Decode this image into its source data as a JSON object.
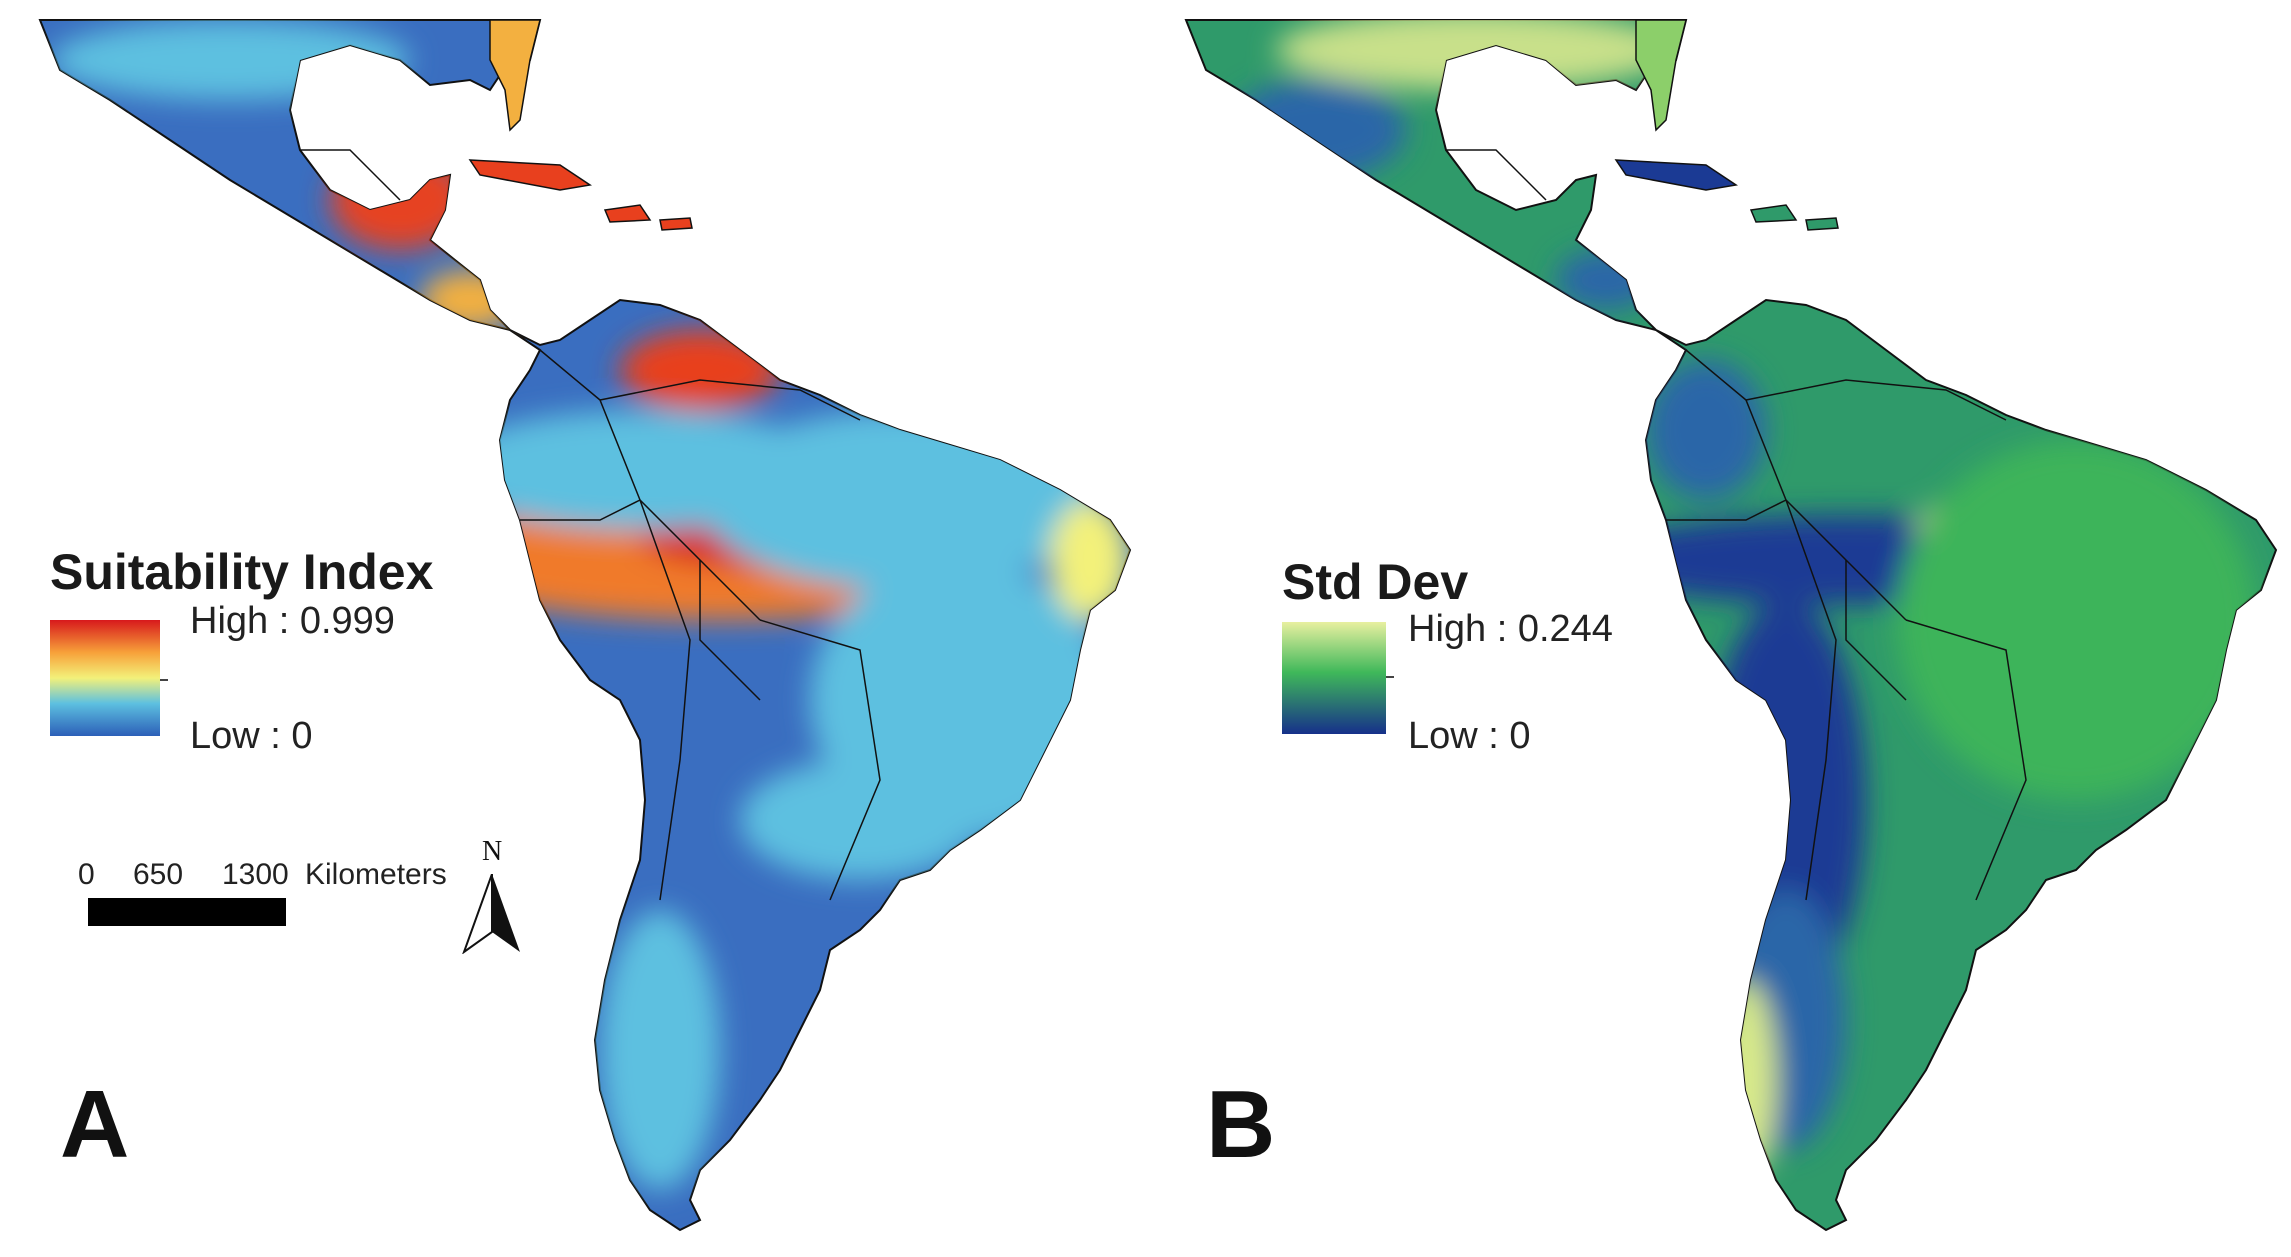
{
  "panel_a": {
    "letter": "A",
    "legend": {
      "title": "Suitability Index",
      "high": "High : 0.999",
      "low": "Low : 0",
      "colors": [
        "#d7191c",
        "#f7a13a",
        "#f3f17a",
        "#5dc0e0",
        "#2c5fb8"
      ]
    },
    "scale_bar": {
      "ticks": [
        "0",
        "650",
        "1300"
      ],
      "unit": "Kilometers"
    },
    "north_arrow": "N",
    "land_base_color": "#3a6ec0"
  },
  "panel_b": {
    "letter": "B",
    "legend": {
      "title": "Std Dev",
      "high": "High : 0.244",
      "low": "Low : 0",
      "colors": [
        "#e8f0a0",
        "#3fb85a",
        "#16308a"
      ]
    },
    "land_base_color": "#2f9a6a"
  }
}
